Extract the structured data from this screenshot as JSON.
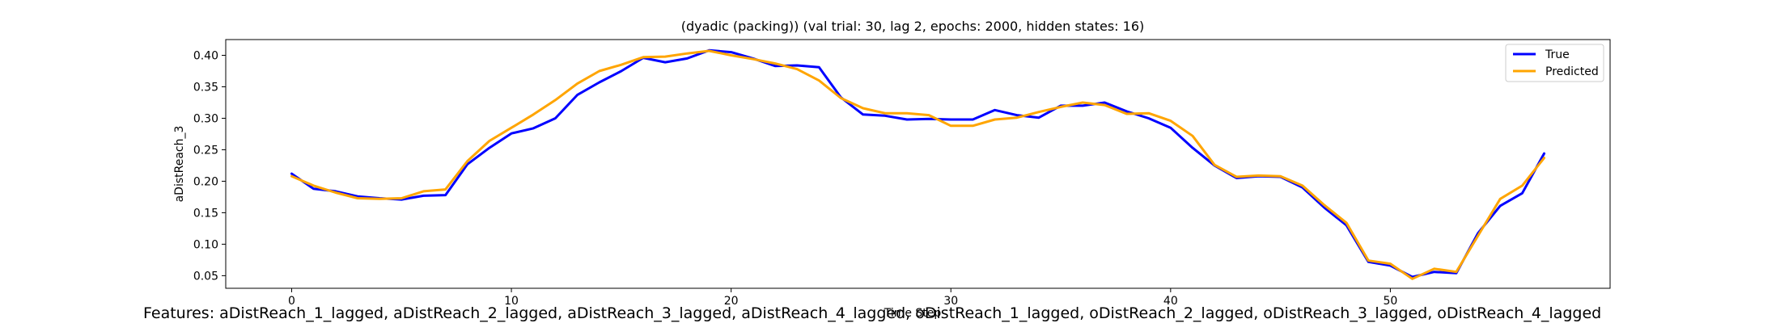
{
  "chart_data": {
    "type": "line",
    "title": "(dyadic (packing)) (val trial: 30, lag 2, epochs: 2000, hidden states: 16)",
    "xlabel": "Time Step",
    "ylabel": "aDistReach_3",
    "xlim": [
      -3,
      60
    ],
    "ylim": [
      0.03,
      0.425
    ],
    "xticks": [
      0,
      10,
      20,
      30,
      40,
      50
    ],
    "yticks": [
      0.05,
      0.1,
      0.15,
      0.2,
      0.25,
      0.3,
      0.35,
      0.4
    ],
    "legend": "top-right",
    "grid": false,
    "x": [
      0,
      1,
      2,
      3,
      4,
      5,
      6,
      7,
      8,
      9,
      10,
      11,
      12,
      13,
      14,
      15,
      16,
      17,
      18,
      19,
      20,
      21,
      22,
      23,
      24,
      25,
      26,
      27,
      28,
      29,
      30,
      31,
      32,
      33,
      34,
      35,
      36,
      37,
      38,
      39,
      40,
      41,
      42,
      43,
      44,
      45,
      46,
      47,
      48,
      49,
      50,
      51,
      52,
      53,
      54,
      55,
      56,
      57
    ],
    "series": [
      {
        "name": "True",
        "color": "#0000ff",
        "values": [
          0.212,
          0.188,
          0.184,
          0.176,
          0.173,
          0.171,
          0.177,
          0.178,
          0.227,
          0.253,
          0.276,
          0.284,
          0.3,
          0.337,
          0.357,
          0.375,
          0.396,
          0.389,
          0.395,
          0.408,
          0.405,
          0.395,
          0.383,
          0.384,
          0.381,
          0.333,
          0.306,
          0.304,
          0.298,
          0.299,
          0.298,
          0.298,
          0.313,
          0.305,
          0.301,
          0.32,
          0.32,
          0.325,
          0.311,
          0.3,
          0.285,
          0.253,
          0.225,
          0.205,
          0.208,
          0.207,
          0.19,
          0.158,
          0.13,
          0.072,
          0.066,
          0.048,
          0.056,
          0.054,
          0.118,
          0.161,
          0.181,
          0.244
        ]
      },
      {
        "name": "Predicted",
        "color": "#ffa500",
        "values": [
          0.208,
          0.193,
          0.182,
          0.173,
          0.172,
          0.173,
          0.184,
          0.187,
          0.232,
          0.264,
          0.285,
          0.306,
          0.329,
          0.355,
          0.375,
          0.385,
          0.397,
          0.398,
          0.403,
          0.407,
          0.4,
          0.394,
          0.387,
          0.378,
          0.36,
          0.332,
          0.316,
          0.308,
          0.308,
          0.305,
          0.288,
          0.288,
          0.298,
          0.301,
          0.31,
          0.318,
          0.325,
          0.321,
          0.307,
          0.308,
          0.296,
          0.272,
          0.226,
          0.207,
          0.209,
          0.208,
          0.193,
          0.162,
          0.134,
          0.074,
          0.069,
          0.045,
          0.061,
          0.056,
          0.114,
          0.172,
          0.193,
          0.237
        ]
      }
    ]
  },
  "footer_text": "Features: aDistReach_1_lagged, aDistReach_2_lagged, aDistReach_3_lagged, aDistReach_4_lagged, oDistReach_1_lagged, oDistReach_2_lagged, oDistReach_3_lagged, oDistReach_4_lagged"
}
